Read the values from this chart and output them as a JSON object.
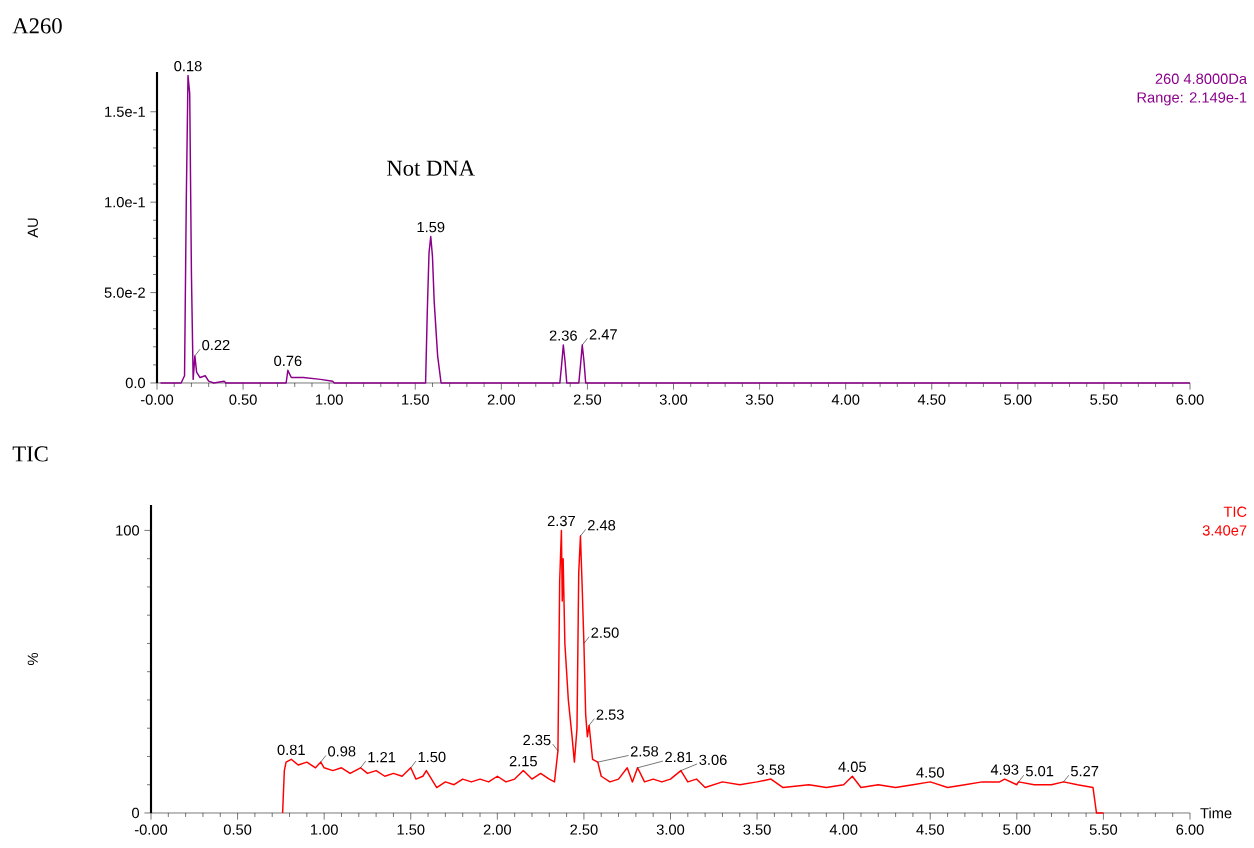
{
  "chart_data": [
    {
      "type": "line",
      "title": "A260",
      "ylabel": "AU",
      "xlim": [
        0,
        6
      ],
      "ylim": [
        0,
        0.172
      ],
      "xticks": [
        {
          "value": 0,
          "label": "-0.00"
        },
        {
          "value": 0.5,
          "label": "0.50"
        },
        {
          "value": 1,
          "label": "1.00"
        },
        {
          "value": 1.5,
          "label": "1.50"
        },
        {
          "value": 2,
          "label": "2.00"
        },
        {
          "value": 2.5,
          "label": "2.50"
        },
        {
          "value": 3,
          "label": "3.00"
        },
        {
          "value": 3.5,
          "label": "3.50"
        },
        {
          "value": 4,
          "label": "4.00"
        },
        {
          "value": 4.5,
          "label": "4.50"
        },
        {
          "value": 5,
          "label": "5.00"
        },
        {
          "value": 5.5,
          "label": "5.50"
        },
        {
          "value": 6,
          "label": "6.00"
        }
      ],
      "yticks": [
        {
          "value": 0,
          "label": "0.0"
        },
        {
          "value": 0.05,
          "label": "5.0e-2"
        },
        {
          "value": 0.1,
          "label": "1.0e-1"
        },
        {
          "value": 0.15,
          "label": "1.5e-1"
        }
      ],
      "x": [
        0.02,
        0.14,
        0.16,
        0.17,
        0.18,
        0.19,
        0.2,
        0.21,
        0.22,
        0.23,
        0.25,
        0.28,
        0.3,
        0.33,
        0.39,
        0.4,
        0.75,
        0.76,
        0.78,
        0.85,
        0.95,
        1.02,
        1.03,
        1.56,
        1.57,
        1.58,
        1.59,
        1.6,
        1.61,
        1.63,
        1.65,
        2.34,
        2.35,
        2.36,
        2.37,
        2.38,
        2.45,
        2.46,
        2.47,
        2.48,
        2.49,
        6
      ],
      "series": [
        {
          "color": "#8b008b",
          "values": [
            0,
            0,
            0.004,
            0.1,
            0.17,
            0.16,
            0.06,
            0.002,
            0.015,
            0.006,
            0.003,
            0.004,
            0.001,
            0,
            0.001,
            0,
            0,
            0.007,
            0.003,
            0.003,
            0.002,
            0.001,
            0,
            0,
            0.04,
            0.072,
            0.081,
            0.07,
            0.045,
            0.015,
            0,
            0,
            0.01,
            0.021,
            0.012,
            0,
            0,
            0.01,
            0.021,
            0.012,
            0,
            0
          ]
        }
      ],
      "annotations": [
        "260 4.8000Da",
        "Range: 2.149e-1",
        {
          "text": "0.18",
          "x": 0.18,
          "y": 0.17
        },
        {
          "text": "0.22",
          "x": 0.22,
          "y": 0.015
        },
        {
          "text": "0.76",
          "x": 0.76,
          "y": 0.007
        },
        {
          "text": "1.59",
          "x": 1.59,
          "y": 0.081
        },
        {
          "text": "Not DNA",
          "x": 1.59,
          "y": 0.081
        },
        {
          "text": "2.36",
          "x": 2.36,
          "y": 0.021
        },
        {
          "text": "2.47",
          "x": 2.47,
          "y": 0.021
        }
      ]
    },
    {
      "type": "line",
      "title": "TIC",
      "ylabel": "%",
      "xlabel": "Time",
      "xlim": [
        0,
        6
      ],
      "ylim": [
        0,
        109
      ],
      "xticks": [
        {
          "value": 0,
          "label": "-0.00"
        },
        {
          "value": 0.5,
          "label": "0.50"
        },
        {
          "value": 1,
          "label": "1.00"
        },
        {
          "value": 1.5,
          "label": "1.50"
        },
        {
          "value": 2,
          "label": "2.00"
        },
        {
          "value": 2.5,
          "label": "2.50"
        },
        {
          "value": 3,
          "label": "3.00"
        },
        {
          "value": 3.5,
          "label": "3.50"
        },
        {
          "value": 4,
          "label": "4.00"
        },
        {
          "value": 4.5,
          "label": "4.50"
        },
        {
          "value": 5,
          "label": "5.00"
        },
        {
          "value": 5.5,
          "label": "5.50"
        },
        {
          "value": 6,
          "label": "6.00"
        }
      ],
      "yticks": [
        {
          "value": 0,
          "label": "0"
        },
        {
          "value": 100,
          "label": "100"
        }
      ],
      "x": [
        0.76,
        0.77,
        0.78,
        0.81,
        0.85,
        0.9,
        0.95,
        0.98,
        1.0,
        1.05,
        1.1,
        1.15,
        1.21,
        1.25,
        1.3,
        1.35,
        1.4,
        1.45,
        1.5,
        1.53,
        1.57,
        1.59,
        1.62,
        1.65,
        1.7,
        1.75,
        1.8,
        1.85,
        1.9,
        1.95,
        2.0,
        2.05,
        2.1,
        2.15,
        2.2,
        2.25,
        2.3,
        2.33,
        2.35,
        2.36,
        2.37,
        2.375,
        2.38,
        2.39,
        2.41,
        2.43,
        2.445,
        2.46,
        2.47,
        2.48,
        2.49,
        2.5,
        2.51,
        2.52,
        2.53,
        2.55,
        2.58,
        2.6,
        2.65,
        2.7,
        2.75,
        2.78,
        2.81,
        2.85,
        2.9,
        2.95,
        3.0,
        3.06,
        3.1,
        3.15,
        3.2,
        3.3,
        3.4,
        3.5,
        3.58,
        3.65,
        3.8,
        3.9,
        4.0,
        4.05,
        4.1,
        4.2,
        4.3,
        4.4,
        4.5,
        4.6,
        4.7,
        4.8,
        4.9,
        4.93,
        5.0,
        5.01,
        5.1,
        5.2,
        5.27,
        5.35,
        5.44,
        5.46,
        5.5
      ],
      "series": [
        {
          "color": "#ff0000",
          "values": [
            0,
            15,
            18,
            19,
            17,
            18,
            16,
            18,
            16,
            15,
            16,
            14,
            16,
            14,
            15,
            13,
            14,
            13,
            16,
            12,
            13,
            15,
            12,
            9,
            11,
            10,
            12,
            11,
            12,
            11,
            13,
            11,
            12,
            15,
            12,
            14,
            12,
            11,
            22,
            82,
            100,
            75,
            90,
            60,
            40,
            28,
            18,
            30,
            85,
            98,
            80,
            60,
            35,
            27,
            31,
            19,
            18,
            13,
            11,
            12,
            16,
            11,
            16,
            11,
            12,
            11,
            12,
            15,
            11,
            12,
            9,
            11,
            10,
            11,
            12,
            9,
            10,
            9,
            10,
            13,
            9,
            10,
            9,
            10,
            11,
            9,
            10,
            11,
            11,
            12,
            10,
            11,
            10,
            10,
            11,
            10,
            9,
            0,
            0
          ]
        }
      ],
      "annotations": [
        "TIC",
        "3.40e7",
        {
          "text": "0.81",
          "x": 0.81,
          "y": 19
        },
        {
          "text": "0.98",
          "x": 0.98,
          "y": 18
        },
        {
          "text": "1.21",
          "x": 1.21,
          "y": 16
        },
        {
          "text": "1.50",
          "x": 1.5,
          "y": 16
        },
        {
          "text": "2.15",
          "x": 2.15,
          "y": 15
        },
        {
          "text": "2.35",
          "x": 2.35,
          "y": 22
        },
        {
          "text": "2.37",
          "x": 2.37,
          "y": 100
        },
        {
          "text": "2.48",
          "x": 2.48,
          "y": 98
        },
        {
          "text": "2.50",
          "x": 2.5,
          "y": 60
        },
        {
          "text": "2.53",
          "x": 2.53,
          "y": 31
        },
        {
          "text": "2.58",
          "x": 2.58,
          "y": 18
        },
        {
          "text": "2.81",
          "x": 2.81,
          "y": 16
        },
        {
          "text": "3.06",
          "x": 3.06,
          "y": 15
        },
        {
          "text": "3.58",
          "x": 3.58,
          "y": 12
        },
        {
          "text": "4.05",
          "x": 4.05,
          "y": 13
        },
        {
          "text": "4.50",
          "x": 4.5,
          "y": 11
        },
        {
          "text": "4.93",
          "x": 4.93,
          "y": 12
        },
        {
          "text": "5.01",
          "x": 5.01,
          "y": 11
        },
        {
          "text": "5.27",
          "x": 5.27,
          "y": 11
        }
      ]
    }
  ]
}
